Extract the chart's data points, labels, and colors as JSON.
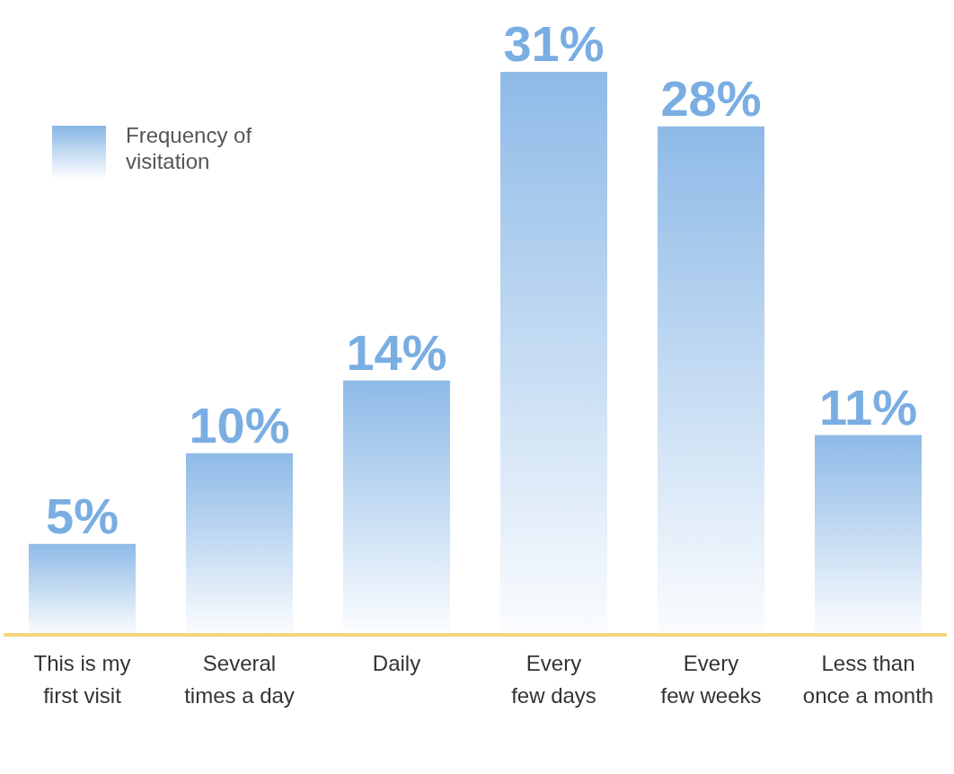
{
  "chart_data": {
    "type": "bar",
    "categories": [
      "This is my first visit",
      "Several times a day",
      "Daily",
      "Every few days",
      "Every few weeks",
      "Less than once a month"
    ],
    "series": [
      {
        "name": "Frequency of visitation",
        "color": "#7aaee3",
        "values": [
          5,
          10,
          14,
          31,
          28,
          11
        ],
        "value_labels": [
          "5%",
          "10%",
          "14%",
          "31%",
          "28%",
          "11%"
        ]
      }
    ],
    "legend": "top left"
  }
}
